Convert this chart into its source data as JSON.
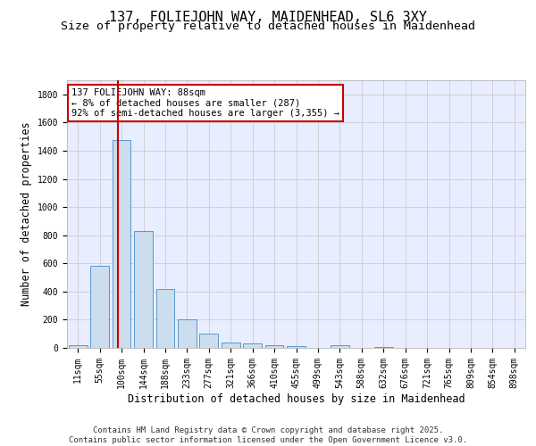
{
  "title_line1": "137, FOLIEJOHN WAY, MAIDENHEAD, SL6 3XY",
  "title_line2": "Size of property relative to detached houses in Maidenhead",
  "xlabel": "Distribution of detached houses by size in Maidenhead",
  "ylabel": "Number of detached properties",
  "bar_color": "#ccdded",
  "bar_edge_color": "#5599cc",
  "grid_color": "#cccccc",
  "background_color": "#e8eeff",
  "annotation_box_color": "#cc0000",
  "annotation_text": "137 FOLIEJOHN WAY: 88sqm\n← 8% of detached houses are smaller (287)\n92% of semi-detached houses are larger (3,355) →",
  "reference_line_color": "#cc0000",
  "reference_line_x": 1.85,
  "categories": [
    "11sqm",
    "55sqm",
    "100sqm",
    "144sqm",
    "188sqm",
    "233sqm",
    "277sqm",
    "321sqm",
    "366sqm",
    "410sqm",
    "455sqm",
    "499sqm",
    "543sqm",
    "588sqm",
    "632sqm",
    "676sqm",
    "721sqm",
    "765sqm",
    "809sqm",
    "854sqm",
    "898sqm"
  ],
  "values": [
    20,
    585,
    1475,
    830,
    415,
    200,
    100,
    38,
    33,
    22,
    10,
    0,
    18,
    0,
    8,
    0,
    0,
    0,
    0,
    0,
    0
  ],
  "ylim": [
    0,
    1900
  ],
  "yticks": [
    0,
    200,
    400,
    600,
    800,
    1000,
    1200,
    1400,
    1600,
    1800
  ],
  "footer_text": "Contains HM Land Registry data © Crown copyright and database right 2025.\nContains public sector information licensed under the Open Government Licence v3.0.",
  "title_fontsize": 11,
  "subtitle_fontsize": 9.5,
  "axis_label_fontsize": 8.5,
  "tick_fontsize": 7,
  "footer_fontsize": 6.5,
  "annot_fontsize": 7.5
}
